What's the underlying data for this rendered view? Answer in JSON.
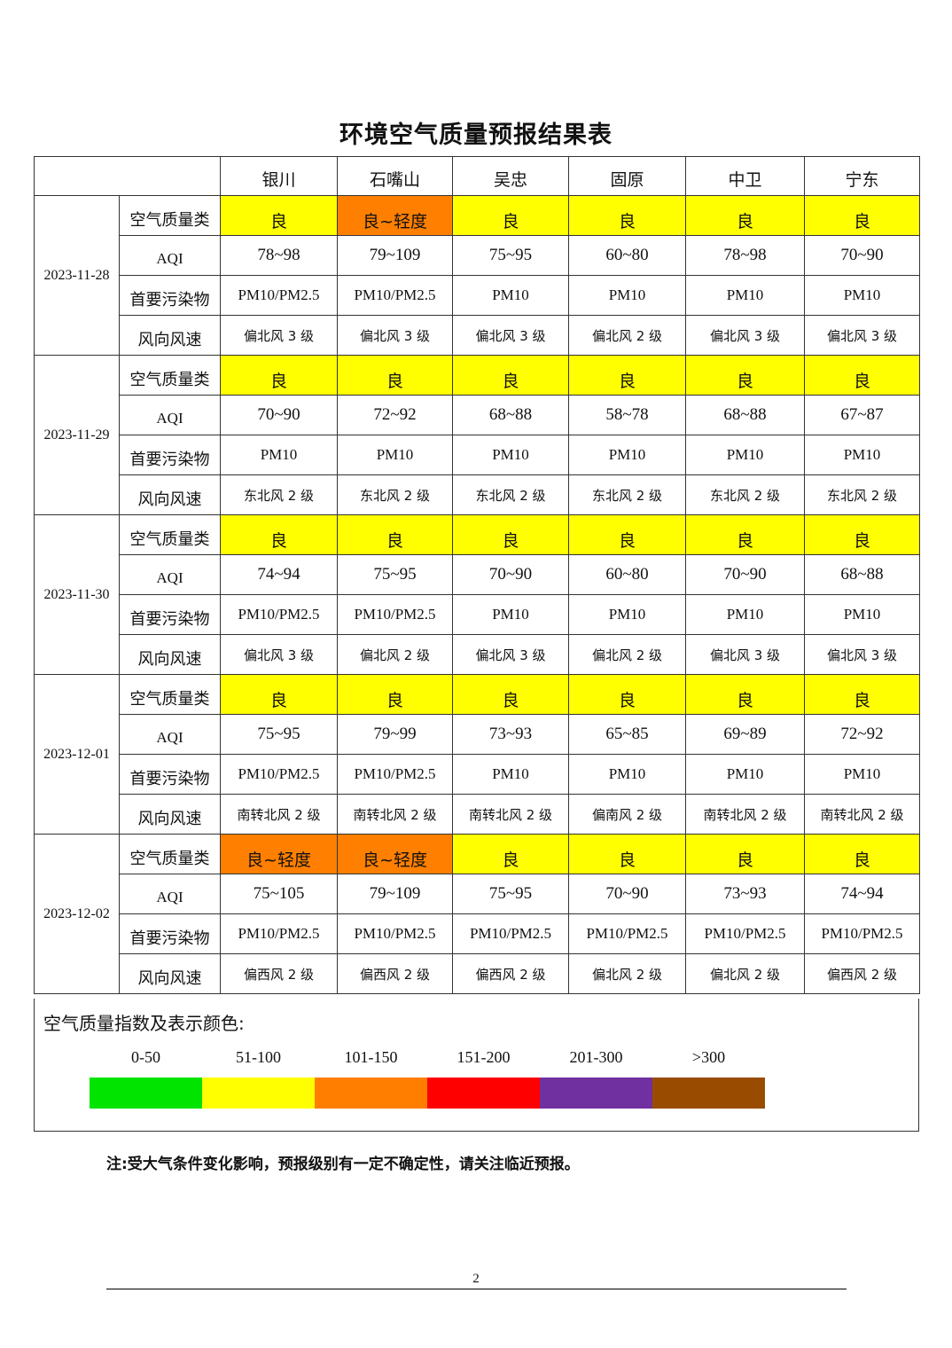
{
  "title": "环境空气质量预报结果表",
  "cities": [
    "银川",
    "石嘴山",
    "吴忠",
    "固原",
    "中卫",
    "宁东"
  ],
  "row_labels": {
    "category": "空气质量类",
    "aqi": "AQI",
    "pollutant": "首要污染物",
    "wind": "风向风速"
  },
  "colors": {
    "good": "#ffff00",
    "light": "#ff7f00"
  },
  "days": [
    {
      "date": "2023-11-28",
      "category": [
        "良",
        "良~轻度",
        "良",
        "良",
        "良",
        "良"
      ],
      "category_level": [
        "good",
        "light",
        "good",
        "good",
        "good",
        "good"
      ],
      "aqi": [
        "78~98",
        "79~109",
        "75~95",
        "60~80",
        "78~98",
        "70~90"
      ],
      "pollutant": [
        "PM10/PM2.5",
        "PM10/PM2.5",
        "PM10",
        "PM10",
        "PM10",
        "PM10"
      ],
      "wind": [
        "偏北风 3 级",
        "偏北风 3 级",
        "偏北风 3 级",
        "偏北风 2 级",
        "偏北风 3 级",
        "偏北风 3 级"
      ]
    },
    {
      "date": "2023-11-29",
      "category": [
        "良",
        "良",
        "良",
        "良",
        "良",
        "良"
      ],
      "category_level": [
        "good",
        "good",
        "good",
        "good",
        "good",
        "good"
      ],
      "aqi": [
        "70~90",
        "72~92",
        "68~88",
        "58~78",
        "68~88",
        "67~87"
      ],
      "pollutant": [
        "PM10",
        "PM10",
        "PM10",
        "PM10",
        "PM10",
        "PM10"
      ],
      "wind": [
        "东北风 2 级",
        "东北风 2 级",
        "东北风 2 级",
        "东北风 2 级",
        "东北风 2 级",
        "东北风 2 级"
      ]
    },
    {
      "date": "2023-11-30",
      "category": [
        "良",
        "良",
        "良",
        "良",
        "良",
        "良"
      ],
      "category_level": [
        "good",
        "good",
        "good",
        "good",
        "good",
        "good"
      ],
      "aqi": [
        "74~94",
        "75~95",
        "70~90",
        "60~80",
        "70~90",
        "68~88"
      ],
      "pollutant": [
        "PM10/PM2.5",
        "PM10/PM2.5",
        "PM10",
        "PM10",
        "PM10",
        "PM10"
      ],
      "wind": [
        "偏北风 3 级",
        "偏北风 2 级",
        "偏北风 3 级",
        "偏北风 2 级",
        "偏北风 3 级",
        "偏北风 3 级"
      ]
    },
    {
      "date": "2023-12-01",
      "category": [
        "良",
        "良",
        "良",
        "良",
        "良",
        "良"
      ],
      "category_level": [
        "good",
        "good",
        "good",
        "good",
        "good",
        "good"
      ],
      "aqi": [
        "75~95",
        "79~99",
        "73~93",
        "65~85",
        "69~89",
        "72~92"
      ],
      "pollutant": [
        "PM10/PM2.5",
        "PM10/PM2.5",
        "PM10",
        "PM10",
        "PM10",
        "PM10"
      ],
      "wind": [
        "南转北风 2 级",
        "南转北风 2 级",
        "南转北风 2 级",
        "偏南风 2 级",
        "南转北风 2 级",
        "南转北风 2 级"
      ]
    },
    {
      "date": "2023-12-02",
      "category": [
        "良~轻度",
        "良~轻度",
        "良",
        "良",
        "良",
        "良"
      ],
      "category_level": [
        "light",
        "light",
        "good",
        "good",
        "good",
        "good"
      ],
      "aqi": [
        "75~105",
        "79~109",
        "75~95",
        "70~90",
        "73~93",
        "74~94"
      ],
      "pollutant": [
        "PM10/PM2.5",
        "PM10/PM2.5",
        "PM10/PM2.5",
        "PM10/PM2.5",
        "PM10/PM2.5",
        "PM10/PM2.5"
      ],
      "wind": [
        "偏西风 2 级",
        "偏西风 2 级",
        "偏西风 2 级",
        "偏北风 2 级",
        "偏北风 2 级",
        "偏西风 2 级"
      ]
    }
  ],
  "legend": {
    "title": "空气质量指数及表示颜色:",
    "items": [
      {
        "range": "0-50",
        "color": "#00e400"
      },
      {
        "range": "51-100",
        "color": "#ffff00"
      },
      {
        "range": "101-150",
        "color": "#ff7e00"
      },
      {
        "range": "151-200",
        "color": "#ff0000"
      },
      {
        "range": "201-300",
        "color": "#7030a0"
      },
      {
        "range": ">300",
        "color": "#994c00"
      }
    ]
  },
  "note": "注:受大气条件变化影响，预报级别有一定不确定性，请关注临近预报。",
  "page_number": "2"
}
